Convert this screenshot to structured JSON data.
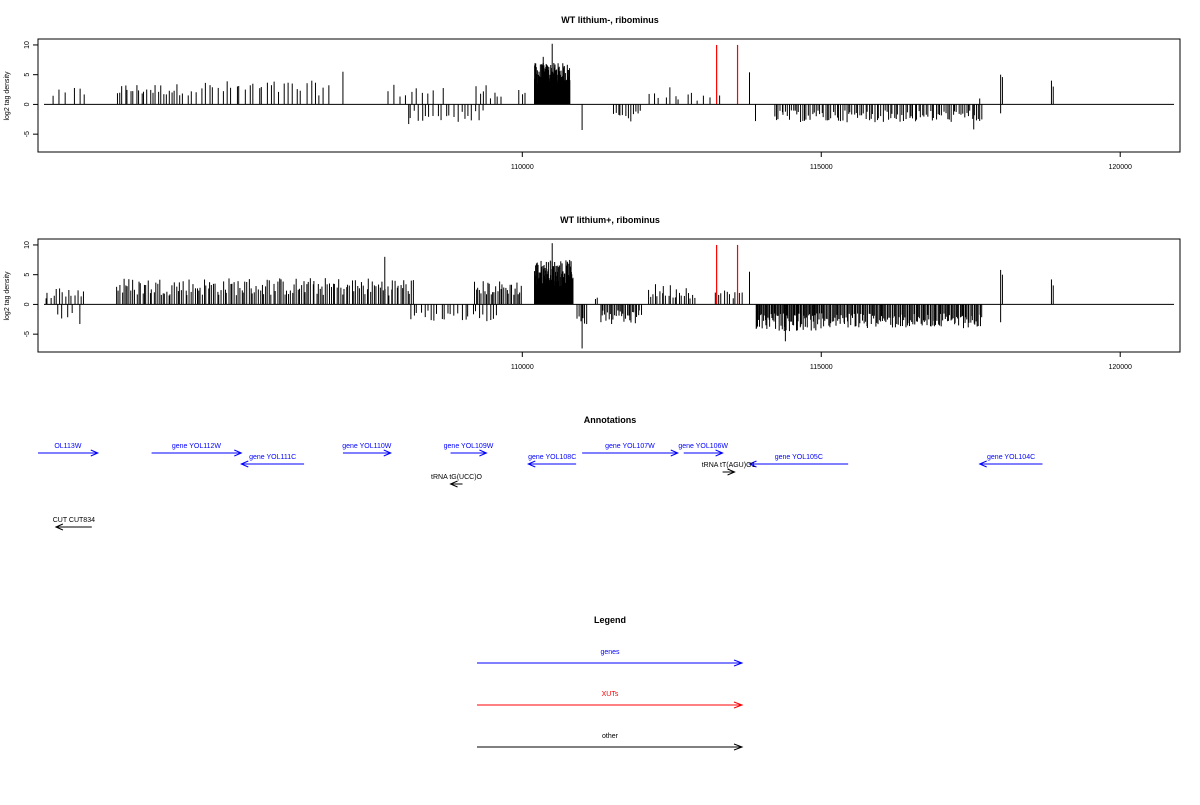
{
  "chart_data": [
    {
      "type": "bar",
      "title": "WT lithium-, ribominus",
      "ylabel": "log2 tag density",
      "xlim": [
        101900,
        121000
      ],
      "ylim": [
        -8,
        11
      ],
      "yticks": [
        -5,
        0,
        5,
        10
      ],
      "xticks": [
        110000,
        115000,
        120000
      ],
      "xtick_labels": [
        "110000",
        "115000",
        "120000"
      ],
      "baseline": {
        "x": [
          102000,
          120900
        ],
        "y": 0
      },
      "series": [
        {
          "strand": "plus",
          "color": "#000000",
          "segments": [
            {
              "x": [
                102100,
                102400
              ],
              "h": [
                2.5,
                1.0
              ],
              "n": 3
            },
            {
              "x": [
                102500,
                102700
              ],
              "h": [
                3.0,
                1.0
              ],
              "n": 3
            },
            {
              "x": [
                103200,
                104300
              ],
              "h": [
                3.5,
                1.5
              ],
              "n": 24
            },
            {
              "x": [
                104300,
                106800
              ],
              "h": [
                4.0,
                1.5
              ],
              "n": 34
            },
            {
              "x": [
                107700,
                108700
              ],
              "h": [
                3.5,
                1.0
              ],
              "n": 10
            },
            {
              "x": [
                109200,
                109700
              ],
              "h": [
                3.5,
                1.0
              ],
              "n": 8
            },
            {
              "x": [
                109900,
                110100
              ],
              "h": [
                3.0,
                1.0
              ],
              "n": 3
            },
            {
              "x": [
                110200,
                110800
              ],
              "h": [
                7.0,
                3.0
              ],
              "n": 110
            },
            {
              "x": [
                112100,
                112600
              ],
              "h": [
                3.0,
                1.0
              ],
              "n": 6
            },
            {
              "x": [
                112600,
                113200
              ],
              "h": [
                2.0,
                0.5
              ],
              "n": 6
            }
          ],
          "spikes": [
            {
              "x": 107000,
              "h": 5.5
            },
            {
              "x": 110500,
              "h": 10.2
            },
            {
              "x": 110350,
              "h": 8.0
            },
            {
              "x": 113800,
              "h": 5.4
            },
            {
              "x": 113300,
              "h": 1.5
            },
            {
              "x": 118000,
              "h": 5.0
            },
            {
              "x": 118030,
              "h": 4.6
            },
            {
              "x": 118850,
              "h": 4.0
            },
            {
              "x": 118880,
              "h": 3.0
            },
            {
              "x": 117650,
              "h": 1.0
            }
          ]
        },
        {
          "strand": "minus",
          "color": "#000000",
          "segments": [
            {
              "x": [
                108100,
                109400
              ],
              "h": [
                3.0,
                1.0
              ],
              "n": 20
            },
            {
              "x": [
                111500,
                112000
              ],
              "h": [
                3.0,
                1.0
              ],
              "n": 12
            },
            {
              "x": [
                114200,
                117700
              ],
              "h": [
                3.0,
                1.0
              ],
              "n": 110
            }
          ],
          "spikes": [
            {
              "x": 108100,
              "h": -3.3
            },
            {
              "x": 111000,
              "h": -4.3
            },
            {
              "x": 113900,
              "h": -2.8
            },
            {
              "x": 117550,
              "h": -4.2
            },
            {
              "x": 118000,
              "h": -1.5
            }
          ]
        },
        {
          "strand": "XUT",
          "color": "#ff0000",
          "lines": [
            {
              "x": 113250,
              "h": 10.0
            },
            {
              "x": 113600,
              "h": 10.0
            }
          ]
        }
      ]
    },
    {
      "type": "bar",
      "title": "WT lithium+, ribominus",
      "ylabel": "log2 tag density",
      "xlim": [
        101900,
        121000
      ],
      "ylim": [
        -8,
        11
      ],
      "yticks": [
        -5,
        0,
        5,
        10
      ],
      "xticks": [
        110000,
        115000,
        120000
      ],
      "xtick_labels": [
        "110000",
        "115000",
        "120000"
      ],
      "baseline": {
        "x": [
          102000,
          120900
        ],
        "y": 0
      },
      "series": [
        {
          "strand": "plus",
          "color": "#000000",
          "segments": [
            {
              "x": [
                102000,
                102700
              ],
              "h": [
                3.0,
                1.0
              ],
              "n": 14
            },
            {
              "x": [
                103200,
                108200
              ],
              "h": [
                4.5,
                1.5
              ],
              "n": 160
            },
            {
              "x": [
                109200,
                110000
              ],
              "h": [
                4.0,
                1.5
              ],
              "n": 30
            },
            {
              "x": [
                110200,
                110850
              ],
              "h": [
                7.5,
                3.0
              ],
              "n": 110
            },
            {
              "x": [
                111200,
                111300
              ],
              "h": [
                1.5,
                0.5
              ],
              "n": 2
            },
            {
              "x": [
                112100,
                112900
              ],
              "h": [
                3.5,
                1.0
              ],
              "n": 22
            },
            {
              "x": [
                113200,
                113700
              ],
              "h": [
                2.5,
                1.0
              ],
              "n": 10
            }
          ],
          "spikes": [
            {
              "x": 107700,
              "h": 8.0
            },
            {
              "x": 110500,
              "h": 10.3
            },
            {
              "x": 113800,
              "h": 5.5
            },
            {
              "x": 118000,
              "h": 5.8
            },
            {
              "x": 118030,
              "h": 5.0
            },
            {
              "x": 118850,
              "h": 4.2
            },
            {
              "x": 118880,
              "h": 3.2
            }
          ]
        },
        {
          "strand": "minus",
          "color": "#000000",
          "segments": [
            {
              "x": [
                102200,
                102500
              ],
              "h": [
                2.5,
                1.0
              ],
              "n": 4
            },
            {
              "x": [
                108100,
                109600
              ],
              "h": [
                3.0,
                1.0
              ],
              "n": 26
            },
            {
              "x": [
                110900,
                111100
              ],
              "h": [
                3.5,
                1.5
              ],
              "n": 6
            },
            {
              "x": [
                111300,
                112000
              ],
              "h": [
                3.5,
                1.0
              ],
              "n": 30
            },
            {
              "x": [
                113900,
                115000
              ],
              "h": [
                4.5,
                1.5
              ],
              "n": 70
            },
            {
              "x": [
                115000,
                117700
              ],
              "h": [
                4.0,
                1.5
              ],
              "n": 140
            }
          ],
          "spikes": [
            {
              "x": 102600,
              "h": -3.3
            },
            {
              "x": 111000,
              "h": -7.4
            },
            {
              "x": 114400,
              "h": -6.2
            },
            {
              "x": 118000,
              "h": -3.0
            }
          ]
        },
        {
          "strand": "XUT",
          "color": "#ff0000",
          "lines": [
            {
              "x": 113250,
              "h": 10.0
            },
            {
              "x": 113600,
              "h": 10.0
            }
          ]
        }
      ]
    }
  ],
  "annotations": {
    "title": "Annotations",
    "features": [
      {
        "label": "OL113W",
        "type": "gene",
        "x0": 101900,
        "x1": 102900,
        "dir": "right",
        "row": 0
      },
      {
        "label": "gene YOL112W",
        "type": "gene",
        "x0": 103800,
        "x1": 105300,
        "dir": "right",
        "row": 0
      },
      {
        "label": "gene YOL111C",
        "type": "gene",
        "x0": 105300,
        "x1": 106350,
        "dir": "left",
        "row": 1
      },
      {
        "label": "gene YOL110W",
        "type": "gene",
        "x0": 107000,
        "x1": 107800,
        "dir": "right",
        "row": 0
      },
      {
        "label": "gene YOL109W",
        "type": "gene",
        "x0": 108800,
        "x1": 109400,
        "dir": "right",
        "row": 0
      },
      {
        "label": "gene YOL108C",
        "type": "gene",
        "x0": 110100,
        "x1": 110900,
        "dir": "left",
        "row": 1
      },
      {
        "label": "gene YOL107W",
        "type": "gene",
        "x0": 111000,
        "x1": 112600,
        "dir": "right",
        "row": 0
      },
      {
        "label": "gene YOL106W",
        "type": "gene",
        "x0": 112700,
        "x1": 113350,
        "dir": "right",
        "row": 0
      },
      {
        "label": "gene YOL105C",
        "type": "gene",
        "x0": 113800,
        "x1": 115450,
        "dir": "left",
        "row": 1
      },
      {
        "label": "gene YOL104C",
        "type": "gene",
        "x0": 117650,
        "x1": 118700,
        "dir": "left",
        "row": 1
      },
      {
        "label": "tRNA tG(UCC)O",
        "type": "other",
        "x0": 108800,
        "x1": 109000,
        "dir": "left",
        "row": 2
      },
      {
        "label": "tRNA tT(AGU)O1",
        "type": "other",
        "x0": 113350,
        "x1": 113550,
        "dir": "right",
        "row": 3
      },
      {
        "label": "CUT CUT834",
        "type": "other",
        "x0": 102200,
        "x1": 102800,
        "dir": "left",
        "row": 4
      }
    ]
  },
  "legend": {
    "title": "Legend",
    "items": [
      {
        "label": "genes",
        "color": "#0000ff"
      },
      {
        "label": "XUTs",
        "color": "#ff0000"
      },
      {
        "label": "other",
        "color": "#000000"
      }
    ]
  }
}
